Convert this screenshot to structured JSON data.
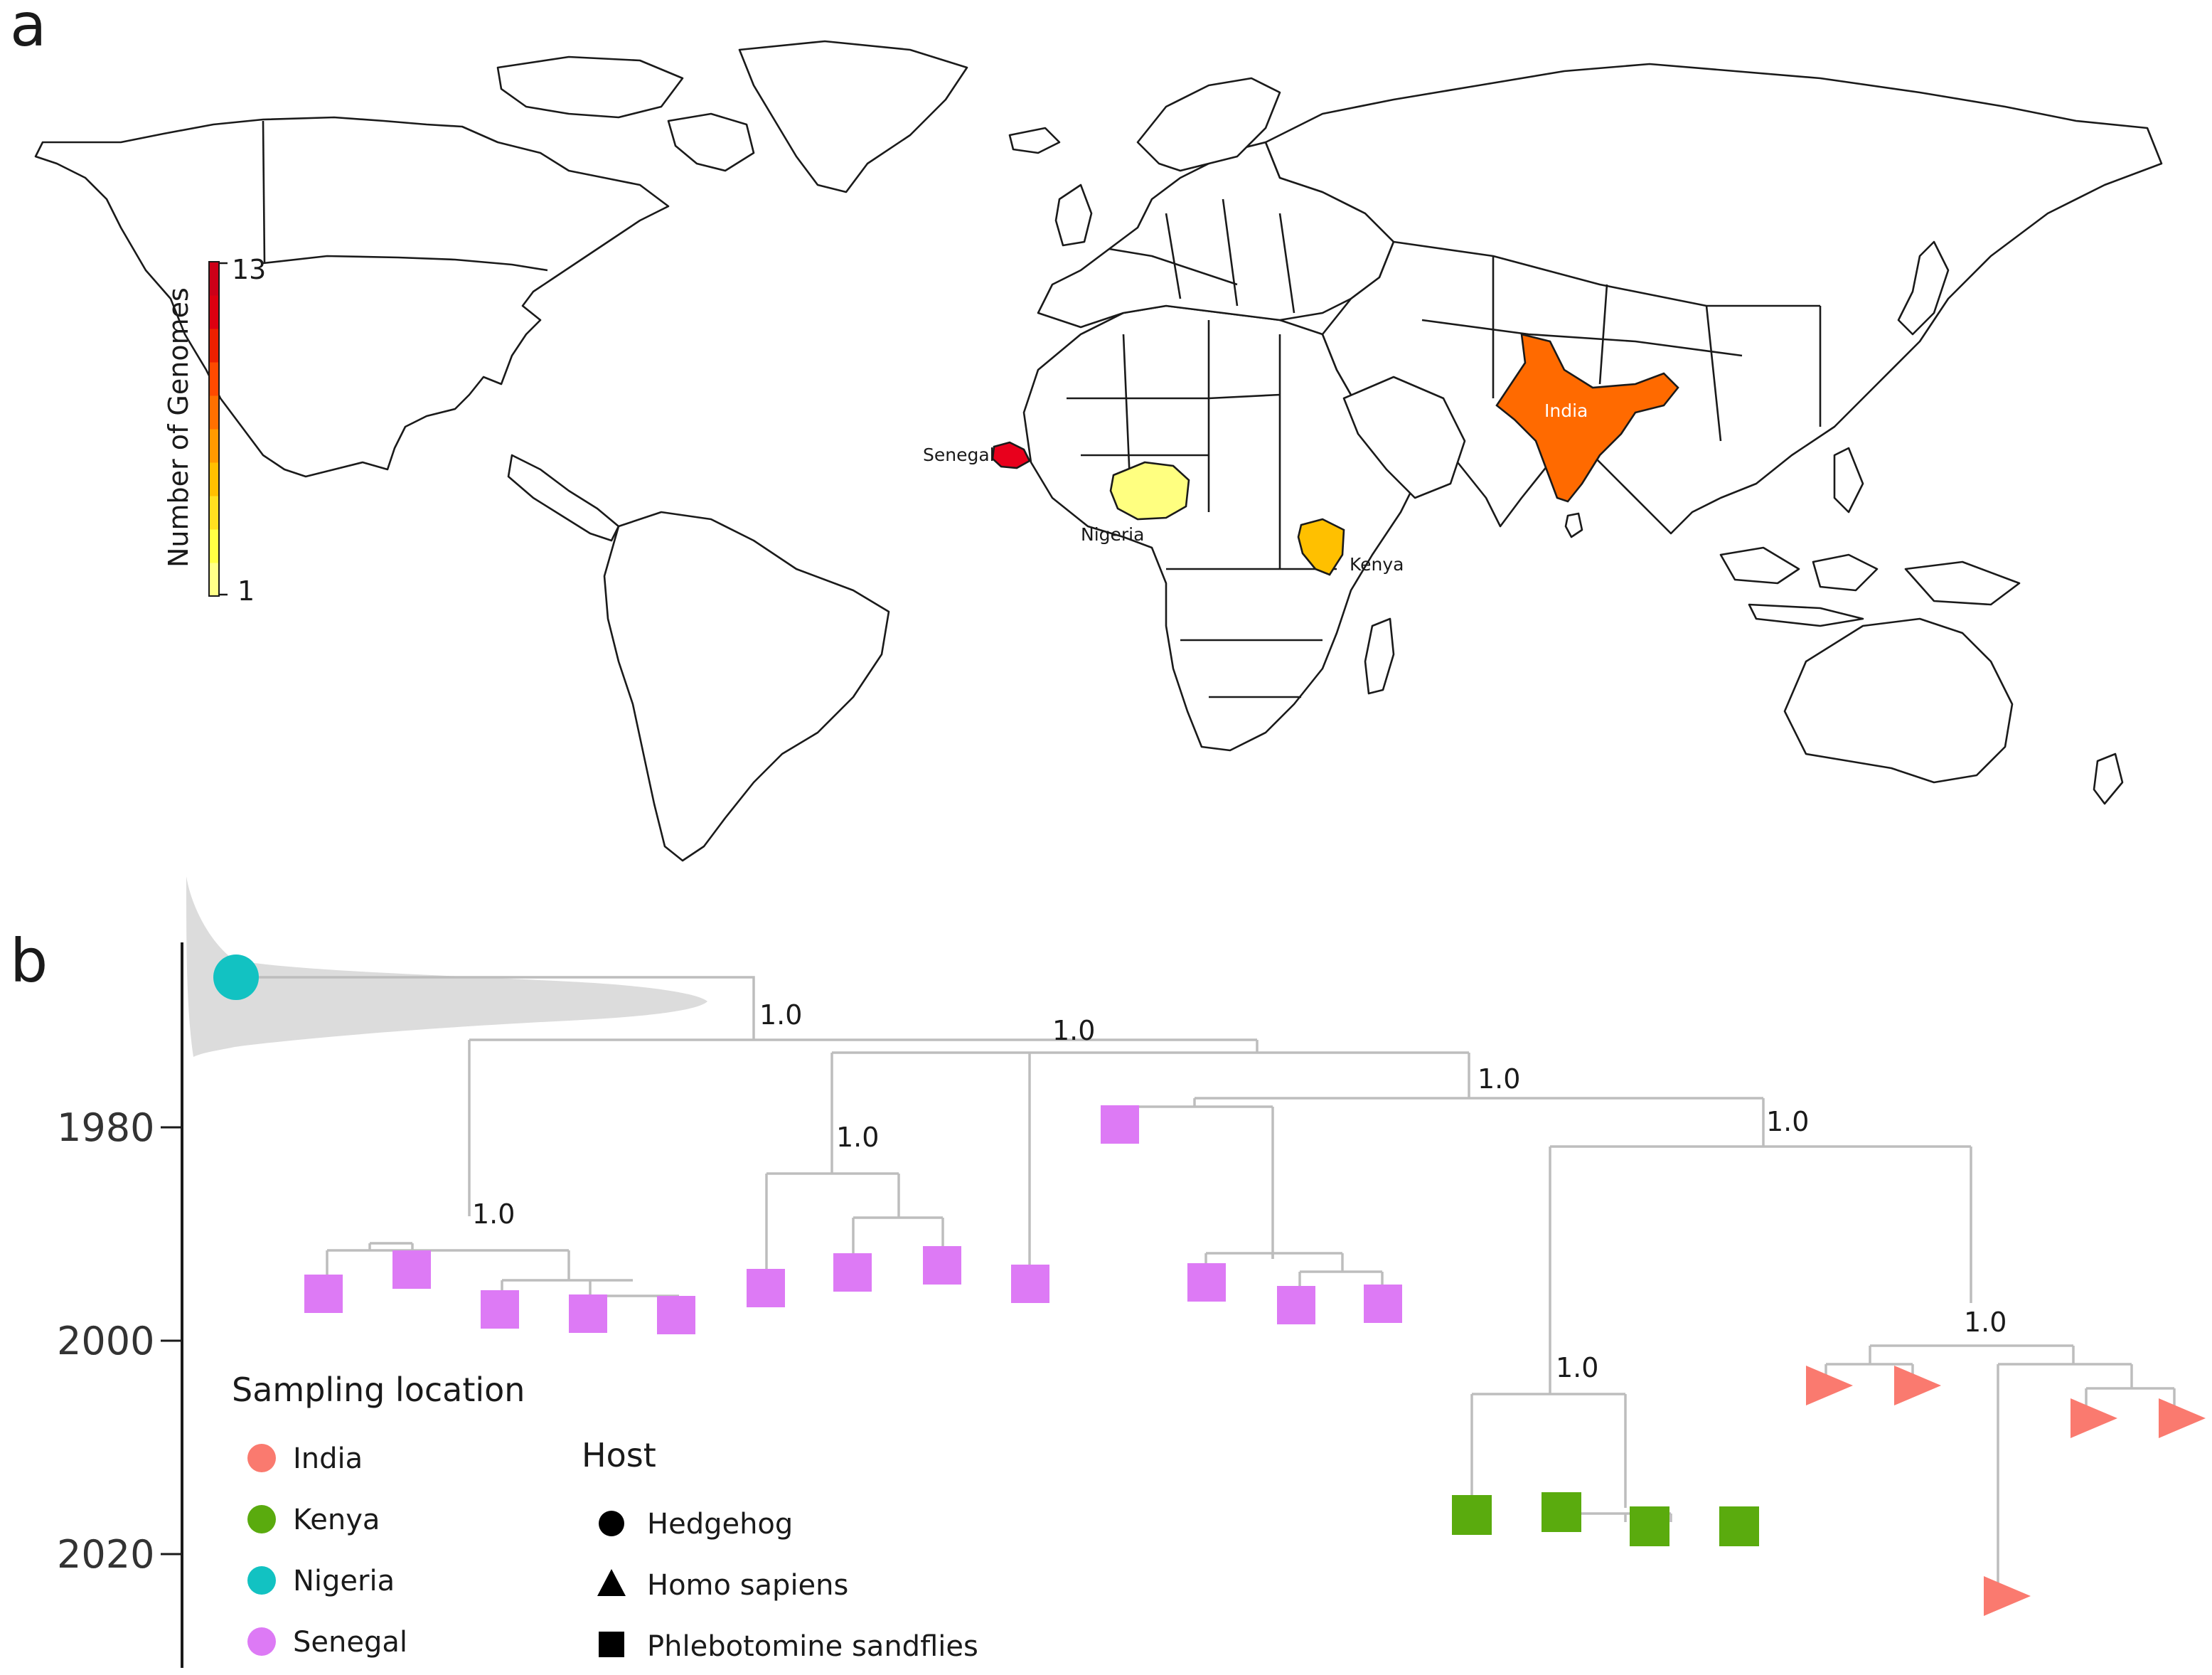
{
  "panels": {
    "a": "a",
    "b": "b"
  },
  "map": {
    "scale": {
      "title": "Number of Genomes",
      "max_label": "13",
      "min_label": "1",
      "colors": [
        "#ffff88",
        "#ffff44",
        "#ffe020",
        "#ffc000",
        "#ff9a00",
        "#ff7000",
        "#ff4a00",
        "#ee2000",
        "#dd0010",
        "#cc0018"
      ]
    },
    "countries": [
      {
        "name": "Senegal",
        "color": "#e8001c"
      },
      {
        "name": "Nigeria",
        "color": "#ffff80"
      },
      {
        "name": "Kenya",
        "color": "#ffc000"
      },
      {
        "name": "India",
        "color": "#ff6a00"
      }
    ]
  },
  "tree": {
    "axis_ticks": [
      "1980",
      "2000",
      "2020"
    ],
    "support_labels": [
      "1.0",
      "1.0",
      "1.0",
      "1.0",
      "1.0",
      "1.0",
      "1.0",
      "1.0"
    ],
    "colors": {
      "India": "#fa7a6f",
      "Kenya": "#5aab0e",
      "Nigeria": "#12c2c2",
      "Senegal": "#dd7af5",
      "branch": "#bdbdbd",
      "density": "#dcdcdc"
    }
  },
  "legend": {
    "location_title": "Sampling location",
    "locations": [
      {
        "label": "India",
        "color": "#fa7a6f"
      },
      {
        "label": "Kenya",
        "color": "#5aab0e"
      },
      {
        "label": "Nigeria",
        "color": "#12c2c2"
      },
      {
        "label": "Senegal",
        "color": "#dd7af5"
      }
    ],
    "host_title": "Host",
    "hosts": [
      {
        "label": "Hedgehog",
        "shape": "circle"
      },
      {
        "label": "Homo sapiens",
        "shape": "triangle"
      },
      {
        "label": "Phlebotomine sandflies",
        "shape": "square"
      }
    ]
  }
}
